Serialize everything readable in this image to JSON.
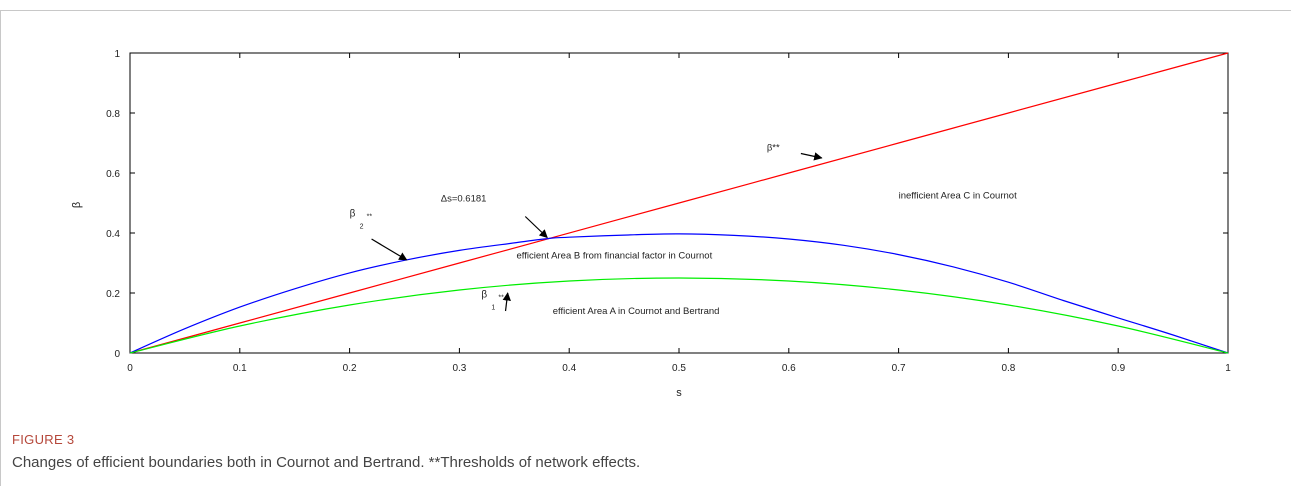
{
  "figure": {
    "label": "FIGURE 3",
    "caption": "Changes of efficient boundaries both in Cournot and Bertrand. **Thresholds of network effects."
  },
  "colors": {
    "blue": "#0000ff",
    "red": "#ff0000",
    "green": "#00ee00",
    "axis": "#000000"
  },
  "chart_data": {
    "type": "line",
    "title": "",
    "xlabel": "s",
    "ylabel": "β",
    "xlim": [
      0,
      1
    ],
    "ylim": [
      0,
      1
    ],
    "xticks": [
      "0",
      "0.1",
      "0.2",
      "0.3",
      "0.4",
      "0.5",
      "0.6",
      "0.7",
      "0.8",
      "0.9",
      "1"
    ],
    "yticks": [
      "0",
      "0.2",
      "0.4",
      "0.6",
      "0.8",
      "1"
    ],
    "grid": false,
    "series": [
      {
        "color": "#ff0000",
        "x": [
          0,
          0.1,
          0.2,
          0.3,
          0.382,
          0.5,
          0.6,
          0.7,
          0.8,
          0.9,
          1
        ],
        "y": [
          0,
          0.1,
          0.2,
          0.3,
          0.382,
          0.5,
          0.6,
          0.7,
          0.8,
          0.9,
          1
        ]
      },
      {
        "color": "#0000ff",
        "x": [
          0,
          0.05,
          0.1,
          0.15,
          0.2,
          0.25,
          0.3,
          0.35,
          0.382,
          0.4,
          0.45,
          0.5,
          0.55,
          0.6,
          0.65,
          0.7,
          0.75,
          0.8,
          0.85,
          0.9,
          0.95,
          1
        ],
        "y": [
          0,
          0.081,
          0.153,
          0.214,
          0.267,
          0.309,
          0.342,
          0.367,
          0.382,
          0.386,
          0.393,
          0.397,
          0.392,
          0.38,
          0.359,
          0.328,
          0.287,
          0.236,
          0.175,
          0.117,
          0.06,
          0
        ]
      },
      {
        "color": "#00ee00",
        "x": [
          0,
          0.1,
          0.2,
          0.3,
          0.4,
          0.5,
          0.6,
          0.7,
          0.8,
          0.9,
          1
        ],
        "y": [
          0,
          0.09,
          0.16,
          0.21,
          0.24,
          0.25,
          0.24,
          0.21,
          0.16,
          0.09,
          0
        ]
      }
    ],
    "annotations": [
      {
        "text": "β**",
        "x": 0.58,
        "y": 0.675
      },
      {
        "text": "Δs=0.6181",
        "x": 0.283,
        "y": 0.505
      },
      {
        "text": "inefficient Area C in Cournot",
        "x": 0.7,
        "y": 0.515
      },
      {
        "text": "efficient Area B from financial factor in Cournot",
        "x": 0.352,
        "y": 0.315
      },
      {
        "text": "efficient Area A in Cournot and Bertrand",
        "x": 0.385,
        "y": 0.13
      }
    ],
    "subscripted_labels": [
      {
        "base": "β",
        "sub": "2",
        "sup": "**",
        "x": 0.2,
        "y": 0.455
      },
      {
        "base": "β",
        "sub": "1",
        "sup": "**",
        "x": 0.32,
        "y": 0.185
      }
    ],
    "arrows": [
      {
        "from": [
          0.611,
          0.665
        ],
        "to": [
          0.63,
          0.65
        ]
      },
      {
        "from": [
          0.22,
          0.38
        ],
        "to": [
          0.252,
          0.31
        ]
      },
      {
        "from": [
          0.36,
          0.455
        ],
        "to": [
          0.38,
          0.385
        ]
      },
      {
        "from": [
          0.342,
          0.14
        ],
        "to": [
          0.344,
          0.2
        ]
      }
    ]
  }
}
